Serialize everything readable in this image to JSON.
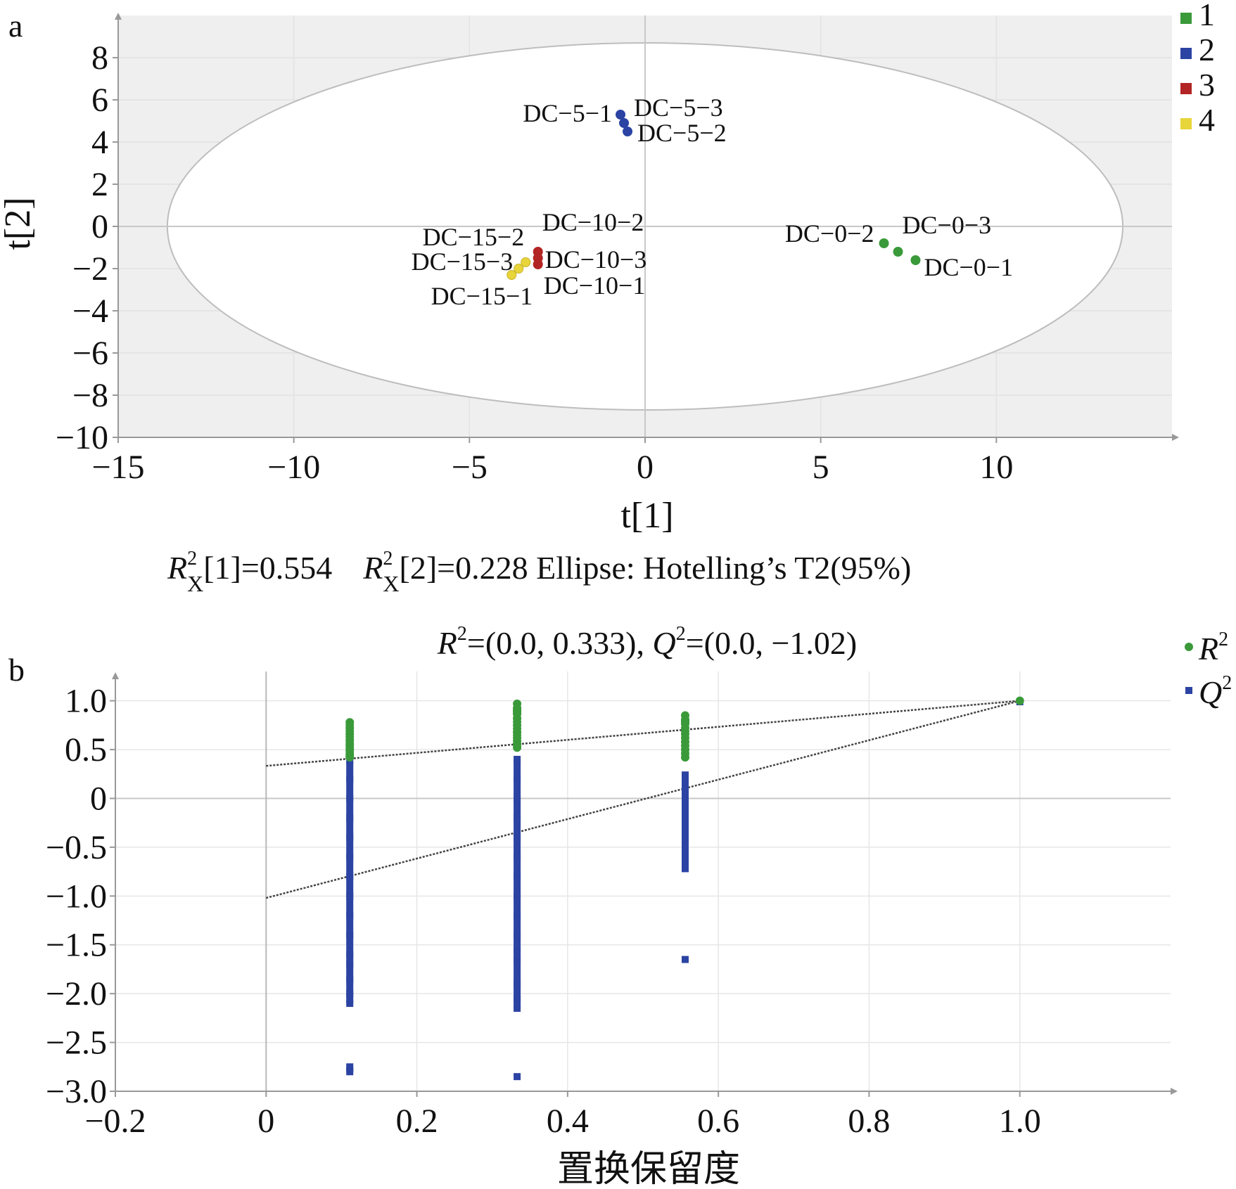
{
  "chart_data": [
    {
      "panel": "a",
      "type": "scatter",
      "xlabel": "t[1]",
      "ylabel": "t[2]",
      "xlim": [
        -15,
        15
      ],
      "ylim": [
        -10,
        10
      ],
      "x_ticks": [
        "−15",
        "−10",
        "−5",
        "0",
        "5",
        "10"
      ],
      "x_tick_values": [
        -15,
        -10,
        -5,
        0,
        5,
        10
      ],
      "y_ticks": [
        "−10",
        "−8",
        "−6",
        "−4",
        "−2",
        "0",
        "2",
        "4",
        "6",
        "8"
      ],
      "y_tick_values": [
        -10,
        -8,
        -6,
        -4,
        -2,
        0,
        2,
        4,
        6,
        8
      ],
      "stats": {
        "r2x1_prefix": "R",
        "r2x1_sup": "2",
        "r2x1_sub": "X",
        "r2x1_value": "[1]=0.554",
        "r2x2_prefix": "R",
        "r2x2_sup": "2",
        "r2x2_sub": "X",
        "r2x2_value": "[2]=0.228 Ellipse: Hotelling’s T2(95%)"
      },
      "ellipse": {
        "cx": 0,
        "cy": 0,
        "rx": 13.6,
        "ry": 8.7
      },
      "legend": [
        {
          "label": "1",
          "color": "#3a9a3a"
        },
        {
          "label": "2",
          "color": "#2b43a3"
        },
        {
          "label": "3",
          "color": "#b32424"
        },
        {
          "label": "4",
          "color": "#e8d53a"
        }
      ],
      "series": [
        {
          "name": "1",
          "color": "#3a9a3a",
          "points": [
            {
              "label": "DC−0−2",
              "x": 6.8,
              "y": -0.8
            },
            {
              "label": "DC−0−3",
              "x": 7.2,
              "y": -1.2
            },
            {
              "label": "DC−0−1",
              "x": 7.7,
              "y": -1.6
            }
          ]
        },
        {
          "name": "2",
          "color": "#2b43a3",
          "points": [
            {
              "label": "DC−5−1",
              "x": -0.7,
              "y": 5.3
            },
            {
              "label": "DC−5−3",
              "x": -0.6,
              "y": 4.9
            },
            {
              "label": "DC−5−2",
              "x": -0.5,
              "y": 4.5
            }
          ]
        },
        {
          "name": "3",
          "color": "#b32424",
          "points": [
            {
              "label": "DC−10−2",
              "x": -3.05,
              "y": -1.2
            },
            {
              "label": "DC−10−3",
              "x": -3.05,
              "y": -1.5
            },
            {
              "label": "DC−10−1",
              "x": -3.05,
              "y": -1.8
            }
          ]
        },
        {
          "name": "4",
          "color": "#e8d53a",
          "points": [
            {
              "label": "DC−15−2",
              "x": -3.4,
              "y": -1.7
            },
            {
              "label": "DC−15−3",
              "x": -3.6,
              "y": -2.0
            },
            {
              "label": "DC−15−1",
              "x": -3.8,
              "y": -2.3
            }
          ]
        }
      ]
    },
    {
      "panel": "b",
      "type": "scatter",
      "title_r_prefix": "R",
      "title_r_sup": "2",
      "title_r_value": "=(0.0, 0.333), ",
      "title_q_prefix": "Q",
      "title_q_sup": "2",
      "title_q_value": "=(0.0, −1.02)",
      "xlabel": "置换保留度",
      "ylabel": "",
      "xlim": [
        -0.2,
        1.2
      ],
      "ylim": [
        -3.0,
        1.3
      ],
      "x_ticks": [
        "−0.2",
        "0",
        "0.2",
        "0.4",
        "0.6",
        "0.8",
        "1.0"
      ],
      "x_tick_values": [
        -0.2,
        0,
        0.2,
        0.4,
        0.6,
        0.8,
        1.0
      ],
      "y_ticks": [
        "1.0",
        "0.5",
        "0",
        "−0.5",
        "−1.0",
        "−1.5",
        "−2.0",
        "−2.5",
        "−3.0"
      ],
      "y_tick_values": [
        1.0,
        0.5,
        0,
        -0.5,
        -1.0,
        -1.5,
        -2.0,
        -2.5,
        -3.0
      ],
      "legend": [
        {
          "label": "R",
          "sup": "2",
          "color": "#3a9a3a",
          "marker": "circle"
        },
        {
          "label": "Q",
          "sup": "2",
          "color": "#2b43a3",
          "marker": "square"
        }
      ],
      "regression_lines": [
        {
          "name": "R2",
          "intercept": 0.333,
          "slope": 0.667
        },
        {
          "name": "Q2",
          "intercept": -1.02,
          "slope": 2.02
        }
      ],
      "series": [
        {
          "name": "R2",
          "color": "#3a9a3a",
          "marker": "circle",
          "points": [
            [
              0.111,
              0.78
            ],
            [
              0.111,
              0.72
            ],
            [
              0.111,
              0.66
            ],
            [
              0.111,
              0.6
            ],
            [
              0.111,
              0.55
            ],
            [
              0.111,
              0.5
            ],
            [
              0.111,
              0.45
            ],
            [
              0.111,
              0.42
            ],
            [
              0.333,
              0.97
            ],
            [
              0.333,
              0.82
            ],
            [
              0.333,
              0.75
            ],
            [
              0.333,
              0.68
            ],
            [
              0.333,
              0.62
            ],
            [
              0.333,
              0.56
            ],
            [
              0.333,
              0.52
            ],
            [
              0.556,
              0.85
            ],
            [
              0.556,
              0.72
            ],
            [
              0.556,
              0.66
            ],
            [
              0.556,
              0.58
            ],
            [
              0.556,
              0.5
            ],
            [
              0.556,
              0.42
            ],
            [
              1.0,
              1.0
            ]
          ]
        },
        {
          "name": "Q2",
          "color": "#2b43a3",
          "marker": "square",
          "points": [
            [
              0.111,
              0.38
            ],
            [
              0.111,
              0.2
            ],
            [
              0.111,
              0.0
            ],
            [
              0.111,
              -0.2
            ],
            [
              0.111,
              -0.4
            ],
            [
              0.111,
              -0.6
            ],
            [
              0.111,
              -0.8
            ],
            [
              0.111,
              -1.0
            ],
            [
              0.111,
              -1.2
            ],
            [
              0.111,
              -1.4
            ],
            [
              0.111,
              -1.6
            ],
            [
              0.111,
              -1.7
            ],
            [
              0.111,
              -1.85
            ],
            [
              0.111,
              -2.0
            ],
            [
              0.111,
              -2.1
            ],
            [
              0.111,
              -2.75
            ],
            [
              0.111,
              -2.8
            ],
            [
              0.333,
              0.95
            ],
            [
              0.333,
              0.7
            ],
            [
              0.333,
              0.4
            ],
            [
              0.333,
              0.2
            ],
            [
              0.333,
              0.0
            ],
            [
              0.333,
              -0.2
            ],
            [
              0.333,
              -0.4
            ],
            [
              0.333,
              -0.6
            ],
            [
              0.333,
              -0.8
            ],
            [
              0.333,
              -1.0
            ],
            [
              0.333,
              -1.2
            ],
            [
              0.333,
              -1.4
            ],
            [
              0.333,
              -1.55
            ],
            [
              0.333,
              -1.65
            ],
            [
              0.333,
              -1.9
            ],
            [
              0.333,
              -2.05
            ],
            [
              0.333,
              -2.15
            ],
            [
              0.333,
              -2.85
            ],
            [
              0.556,
              0.24
            ],
            [
              0.556,
              0.08
            ],
            [
              0.556,
              -0.1
            ],
            [
              0.556,
              -0.3
            ],
            [
              0.556,
              -0.5
            ],
            [
              0.556,
              -0.65
            ],
            [
              0.556,
              -0.72
            ],
            [
              0.556,
              -1.65
            ],
            [
              1.0,
              0.99
            ]
          ]
        }
      ]
    }
  ]
}
